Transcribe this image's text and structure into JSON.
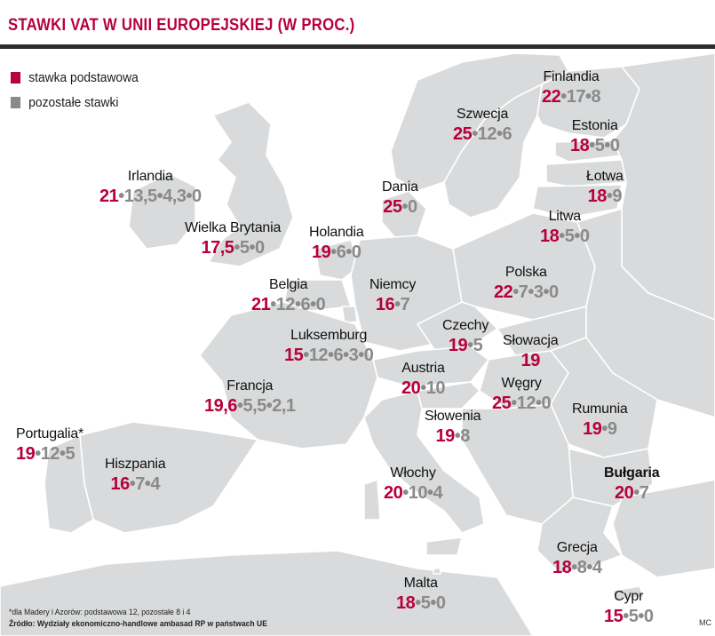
{
  "title": "STAWKI VAT W UNII EUROPEJSKIEJ (W PROC.)",
  "legend": [
    {
      "label": "stawka podstawowa",
      "color": "#b8003a"
    },
    {
      "label": "pozostałe stawki",
      "color": "#8a8a8a"
    }
  ],
  "countries": [
    {
      "name": "Finlandia",
      "standard": "22",
      "others": "•17•8"
    },
    {
      "name": "Szwecja",
      "standard": "25",
      "others": "•12•6"
    },
    {
      "name": "Estonia",
      "standard": "18",
      "others": "•5•0"
    },
    {
      "name": "Łotwa",
      "standard": "18",
      "others": "•9"
    },
    {
      "name": "Litwa",
      "standard": "18",
      "others": "•5•0"
    },
    {
      "name": "Dania",
      "standard": "25",
      "others": "•0"
    },
    {
      "name": "Irlandia",
      "standard": "21",
      "others": "•13,5•4,3•0"
    },
    {
      "name": "Wielka Brytania",
      "standard": "17,5",
      "others": "•5•0"
    },
    {
      "name": "Holandia",
      "standard": "19",
      "others": "•6•0"
    },
    {
      "name": "Belgia",
      "standard": "21",
      "others": "•12•6•0"
    },
    {
      "name": "Niemcy",
      "standard": "16",
      "others": "•7"
    },
    {
      "name": "Polska",
      "standard": "22",
      "others": "•7•3•0"
    },
    {
      "name": "Czechy",
      "standard": "19",
      "others": "•5"
    },
    {
      "name": "Luksemburg",
      "standard": "15",
      "others": "•12•6•3•0"
    },
    {
      "name": "Słowacja",
      "standard": "19",
      "others": ""
    },
    {
      "name": "Austria",
      "standard": "20",
      "others": "•10"
    },
    {
      "name": "Francja",
      "standard": "19,6",
      "others": "•5,5•2,1"
    },
    {
      "name": "Węgry",
      "standard": "25",
      "others": "•12•0"
    },
    {
      "name": "Rumunia",
      "standard": "19",
      "others": "•9"
    },
    {
      "name": "Słowenia",
      "standard": "19",
      "others": "•8"
    },
    {
      "name": "Portugalia*",
      "standard": "19",
      "others": "•12•5"
    },
    {
      "name": "Hiszpania",
      "standard": "16",
      "others": "•7•4"
    },
    {
      "name": "Włochy",
      "standard": "20",
      "others": "•10•4"
    },
    {
      "name": "Bułgaria",
      "standard": "20",
      "others": "•7"
    },
    {
      "name": "Grecja",
      "standard": "18",
      "others": "•8•4"
    },
    {
      "name": "Malta",
      "standard": "18",
      "others": "•5•0"
    },
    {
      "name": "Cypr",
      "standard": "15",
      "others": "•5•0"
    }
  ],
  "footnote": "*dla Madery i Azorów: podstawowa 12, pozostałe 8 i 4",
  "source": "Źródło: Wydziały ekonomiczno-handlowe ambasad RP w państwach UE",
  "credit": "MC"
}
